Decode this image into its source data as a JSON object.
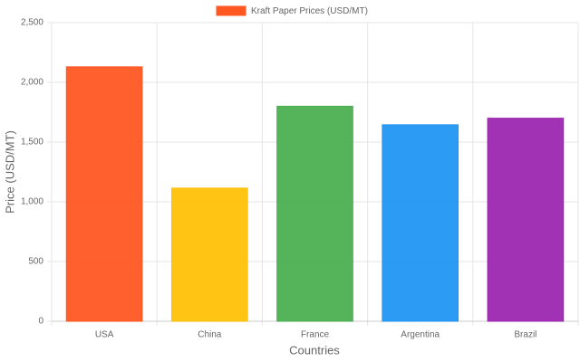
{
  "chart_data": {
    "type": "bar",
    "x_label": "Countries",
    "y_label": "Price (USD/MT)",
    "categories": [
      "USA",
      "China",
      "France",
      "Argentina",
      "Brazil"
    ],
    "series": [
      {
        "name": "Kraft Paper Prices (USD/MT)",
        "colors": [
          "#FF5722",
          "#FFC107",
          "#4CAF50",
          "#2196F3",
          "#9C27B0"
        ],
        "values": [
          2130,
          1115,
          1800,
          1645,
          1700
        ]
      }
    ],
    "ylim": [
      0,
      2500
    ],
    "yticks": [
      0,
      500,
      {
        "value": 1000,
        "label": "1,000"
      },
      {
        "value": 1500,
        "label": "1,500"
      },
      {
        "value": 2000,
        "label": "2,000"
      },
      {
        "value": 2500,
        "label": "2,500"
      }
    ],
    "grid": true,
    "legend": "top"
  }
}
